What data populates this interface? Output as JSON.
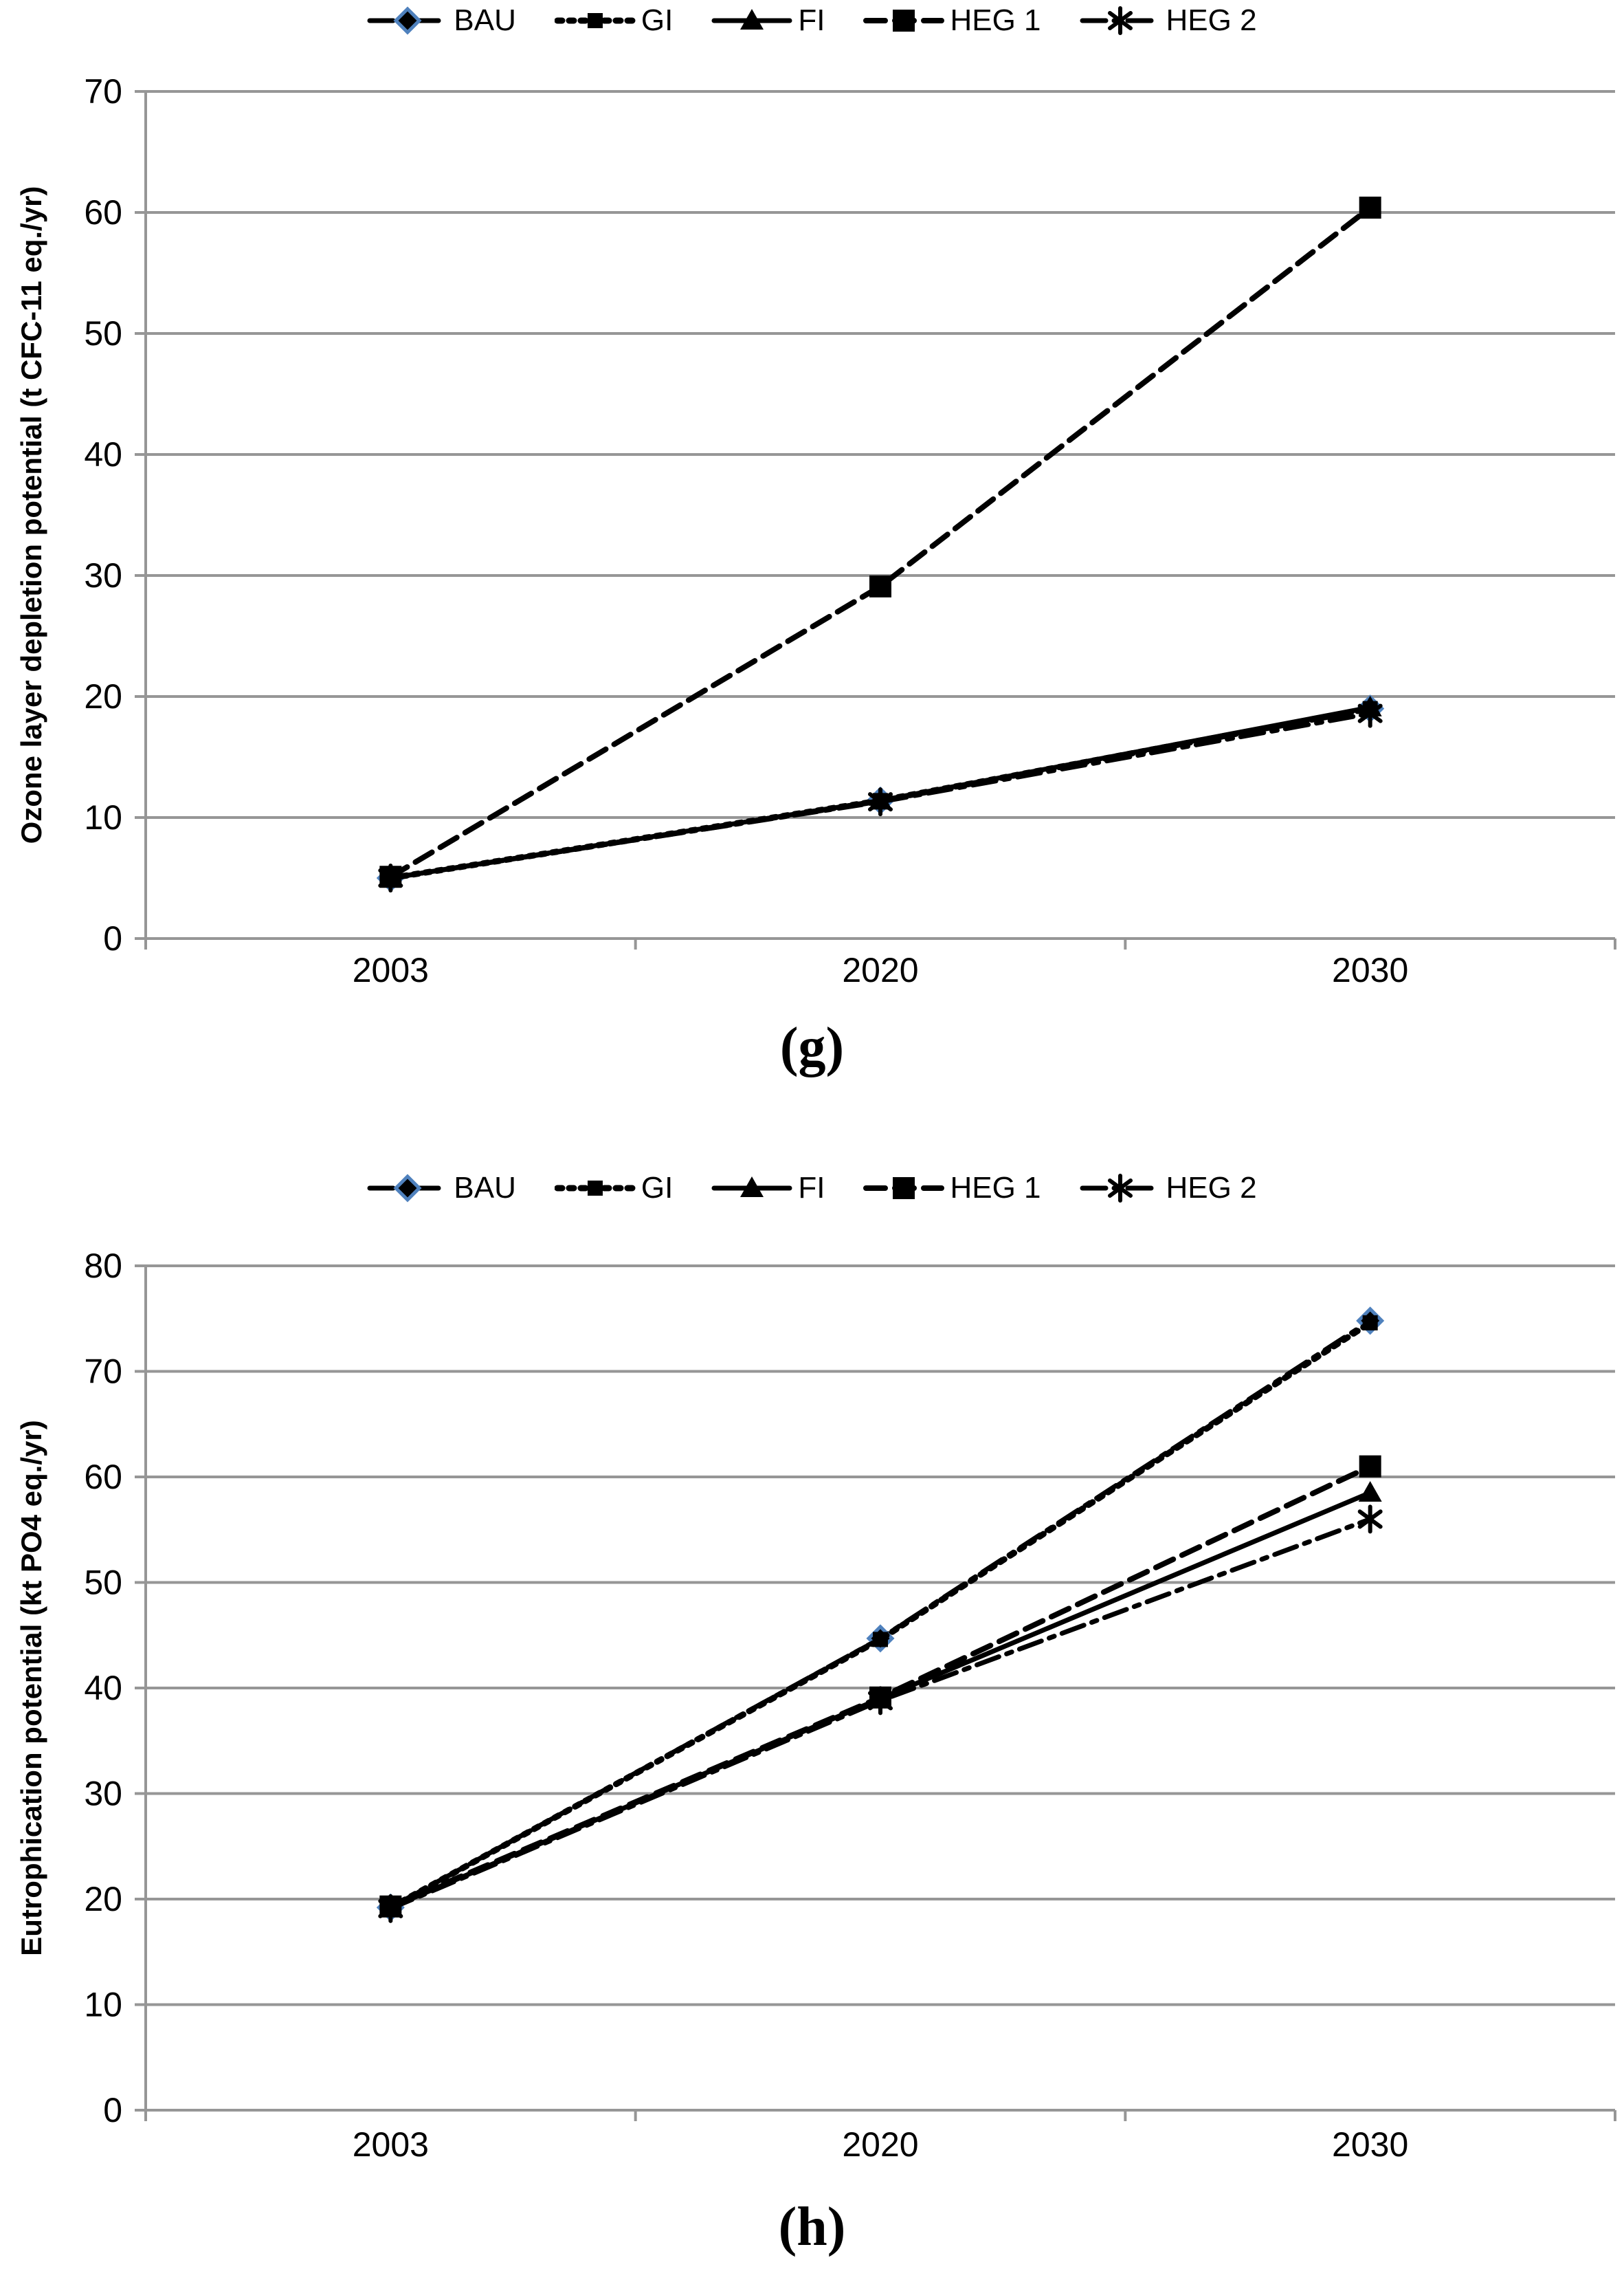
{
  "page": {
    "background": "#ffffff"
  },
  "colors": {
    "axis": "#969696",
    "line": "#000000",
    "text": "#000000",
    "bau_marker_accent": "#4F81BD"
  },
  "chart_data": [
    {
      "type": "line",
      "caption": "(g)",
      "ylabel": "Ozone layer depletion potential (t CFC-11 eq./yr)",
      "xlabel": "",
      "categories": [
        "2003",
        "2020",
        "2030"
      ],
      "ylim": [
        0,
        70
      ],
      "ytick_step": 10,
      "grid": true,
      "legend_position": "top",
      "series": [
        {
          "name": "BAU",
          "values": [
            5.0,
            11.4,
            19.0
          ],
          "line": "dashdot",
          "marker": "diamond"
        },
        {
          "name": "GI",
          "values": [
            5.0,
            11.4,
            19.0
          ],
          "line": "dotted",
          "marker": "square-small"
        },
        {
          "name": "FI",
          "values": [
            5.0,
            11.4,
            19.1
          ],
          "line": "solid",
          "marker": "triangle"
        },
        {
          "name": "HEG 1",
          "values": [
            5.1,
            29.1,
            60.4
          ],
          "line": "dashed",
          "marker": "square"
        },
        {
          "name": "HEG 2",
          "values": [
            5.0,
            11.3,
            18.6
          ],
          "line": "dashdot",
          "marker": "star"
        }
      ]
    },
    {
      "type": "line",
      "caption": "(h)",
      "ylabel": "Eutrophication potential (kt PO4 eq./yr)",
      "xlabel": "",
      "categories": [
        "2003",
        "2020",
        "2030"
      ],
      "ylim": [
        0,
        80
      ],
      "ytick_step": 10,
      "grid": true,
      "legend_position": "top",
      "series": [
        {
          "name": "BAU",
          "values": [
            19.2,
            44.7,
            74.8
          ],
          "line": "dashdot",
          "marker": "diamond"
        },
        {
          "name": "GI",
          "values": [
            19.2,
            44.6,
            74.6
          ],
          "line": "dotted",
          "marker": "square-small"
        },
        {
          "name": "FI",
          "values": [
            19.2,
            39.0,
            58.5
          ],
          "line": "solid",
          "marker": "triangle"
        },
        {
          "name": "HEG 1",
          "values": [
            19.3,
            39.1,
            61.0
          ],
          "line": "dashed",
          "marker": "square"
        },
        {
          "name": "HEG 2",
          "values": [
            19.1,
            38.8,
            56.0
          ],
          "line": "dashdot",
          "marker": "star"
        }
      ]
    }
  ]
}
